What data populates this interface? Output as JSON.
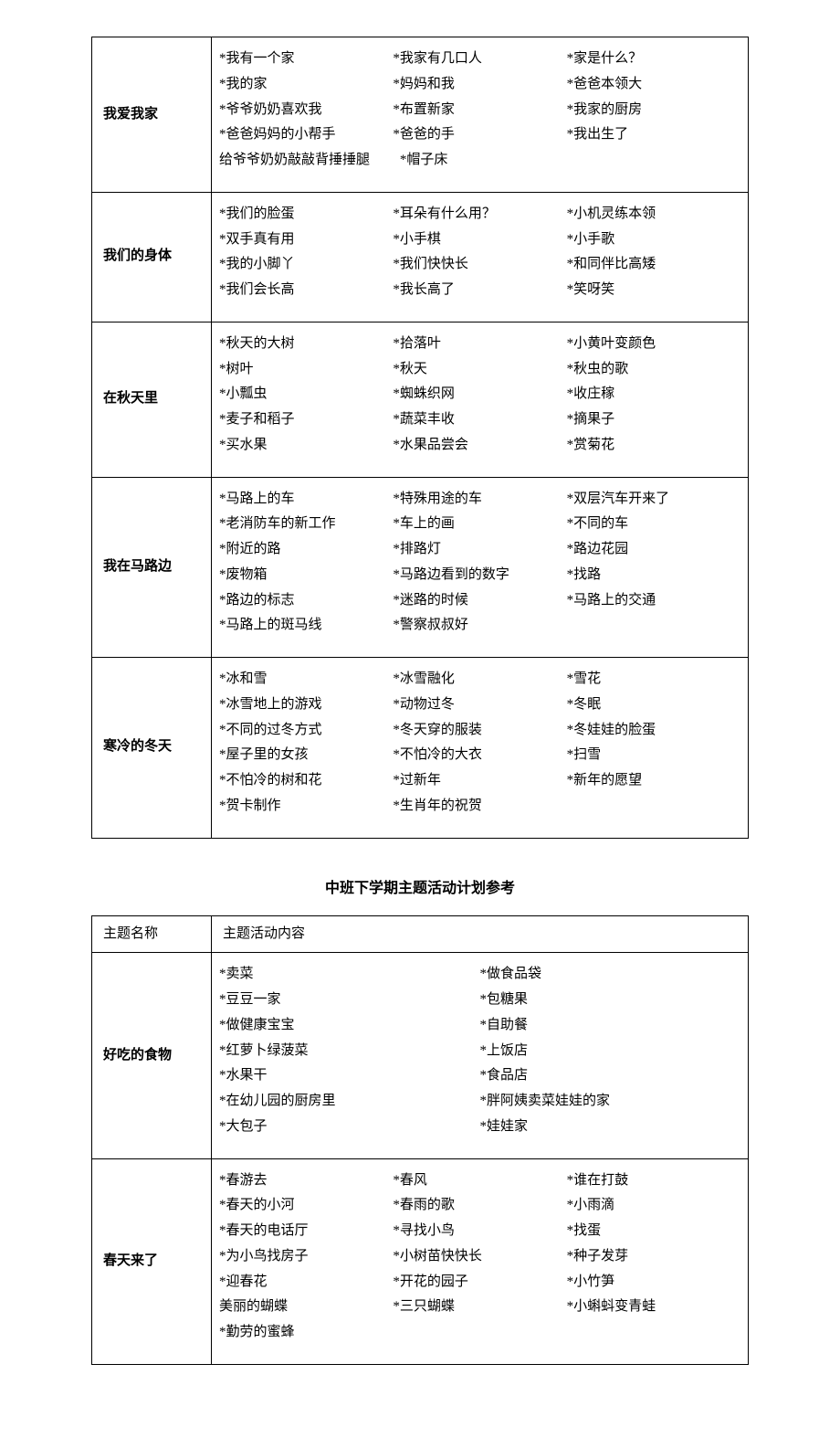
{
  "table1": {
    "rows": [
      {
        "name": "我爱我家",
        "cols": [
          [
            "*我有一个家",
            "*我的家",
            "*爷爷奶奶喜欢我",
            "*爸爸妈妈的小帮手",
            "给爷爷奶奶敲敲背捶捶腿"
          ],
          [
            "*我家有几口人",
            "*妈妈和我",
            "*布置新家",
            "*爸爸的手",
            "  *帽子床"
          ],
          [
            "*家是什么？",
            "*爸爸本领大",
            "*我家的厨房",
            "*我出生了"
          ]
        ]
      },
      {
        "name": "我们的身体",
        "cols": [
          [
            "*我们的脸蛋",
            "*双手真有用",
            "*我的小脚丫",
            "*我们会长高"
          ],
          [
            "*耳朵有什么用？",
            "*小手棋",
            "*我们快快长",
            "*我长高了"
          ],
          [
            "*小机灵练本领",
            "*小手歌",
            "*和同伴比高矮",
            "*笑呀笑"
          ]
        ]
      },
      {
        "name": "在秋天里",
        "cols": [
          [
            "*秋天的大树",
            "*树叶",
            "*小瓢虫",
            "*麦子和稻子",
            "*买水果"
          ],
          [
            "*拾落叶",
            "*秋天",
            "*蜘蛛织网",
            "*蔬菜丰收",
            "*水果品尝会"
          ],
          [
            "*小黄叶变颜色",
            "*秋虫的歌",
            "*收庄稼",
            "*摘果子",
            "*赏菊花"
          ]
        ]
      },
      {
        "name": "我在马路边",
        "cols": [
          [
            "*马路上的车",
            "*老消防车的新工作",
            "*附近的路",
            "*废物箱",
            "*路边的标志",
            "*马路上的斑马线"
          ],
          [
            "*特殊用途的车",
            "*车上的画",
            "*排路灯",
            "*马路边看到的数字",
            "*迷路的时候",
            "*警察叔叔好"
          ],
          [
            "*双层汽车开来了",
            "*不同的车",
            "*路边花园",
            "*找路",
            "*马路上的交通"
          ]
        ]
      },
      {
        "name": "寒冷的冬天",
        "cols": [
          [
            "*冰和雪",
            "*冰雪地上的游戏",
            "*不同的过冬方式",
            "*屋子里的女孩",
            "*不怕冷的树和花",
            "*贺卡制作"
          ],
          [
            "*冰雪融化",
            "*动物过冬",
            "*冬天穿的服装",
            "*不怕冷的大衣",
            "*过新年",
            "*生肖年的祝贺"
          ],
          [
            "*雪花",
            "*冬眠",
            "*冬娃娃的脸蛋",
            "*扫雪",
            "*新年的愿望"
          ]
        ]
      }
    ]
  },
  "section_title": "中班下学期主题活动计划参考",
  "table2": {
    "header": {
      "col1": "主题名称",
      "col2": "主题活动内容"
    },
    "rows": [
      {
        "name": "好吃的食物",
        "cols": [
          [
            "*卖菜",
            "*豆豆一家",
            "*做健康宝宝",
            "*红萝卜绿菠菜",
            "*水果干",
            "*在幼儿园的厨房里",
            "*大包子"
          ],
          [
            "*做食品袋",
            "*包糖果",
            "*自助餐",
            "*上饭店",
            "*食品店",
            "*胖阿姨卖菜娃娃的家",
            "*娃娃家"
          ]
        ]
      },
      {
        "name": "春天来了",
        "cols": [
          [
            "*春游去",
            "*春天的小河",
            "*春天的电话厅",
            "*为小鸟找房子",
            "*迎春花",
            "美丽的蝴蝶",
            "*勤劳的蜜蜂"
          ],
          [
            "*春风",
            "*春雨的歌",
            "*寻找小鸟",
            "*小树苗快快长",
            "*开花的园子",
            "*三只蝴蝶"
          ],
          [
            "*谁在打鼓",
            "*小雨滴",
            "*找蛋",
            "*种子发芽",
            "*小竹笋",
            "*小蝌蚪变青蛙"
          ]
        ]
      }
    ]
  }
}
